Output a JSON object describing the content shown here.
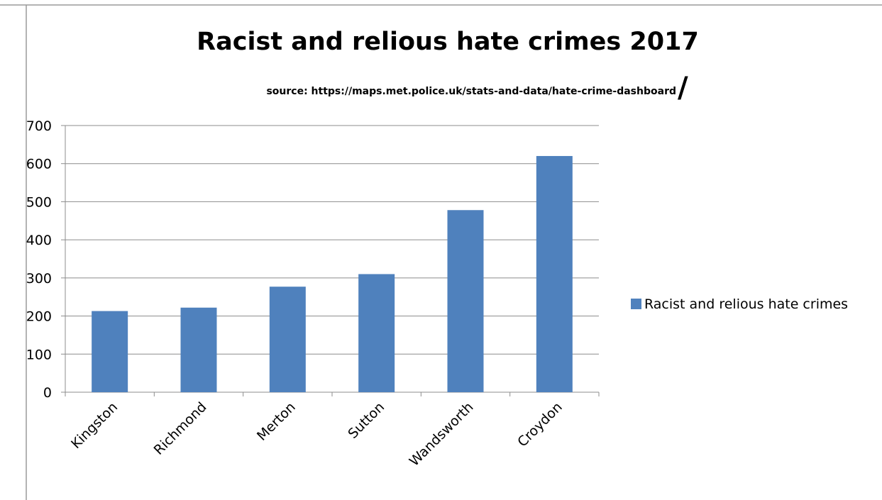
{
  "chart_data": {
    "type": "bar",
    "title": "Racist and relious hate crimes 2017",
    "subtitle": "source: https://maps.met.police.uk/stats-and-data/hate-crime-dashboard",
    "subtitle_suffix": "/",
    "categories": [
      "Kingston",
      "Richmond",
      "Merton",
      "Sutton",
      "Wandsworth",
      "Croydon"
    ],
    "series": [
      {
        "name": "Racist and relious hate crimes",
        "color": "#4f81bd",
        "values": [
          213,
          222,
          277,
          310,
          478,
          620
        ]
      }
    ],
    "ylim": [
      0,
      700
    ],
    "yticks": [
      0,
      100,
      200,
      300,
      400,
      500,
      600,
      700
    ],
    "grid": true,
    "legend": "right",
    "xlabel": "",
    "ylabel": ""
  }
}
